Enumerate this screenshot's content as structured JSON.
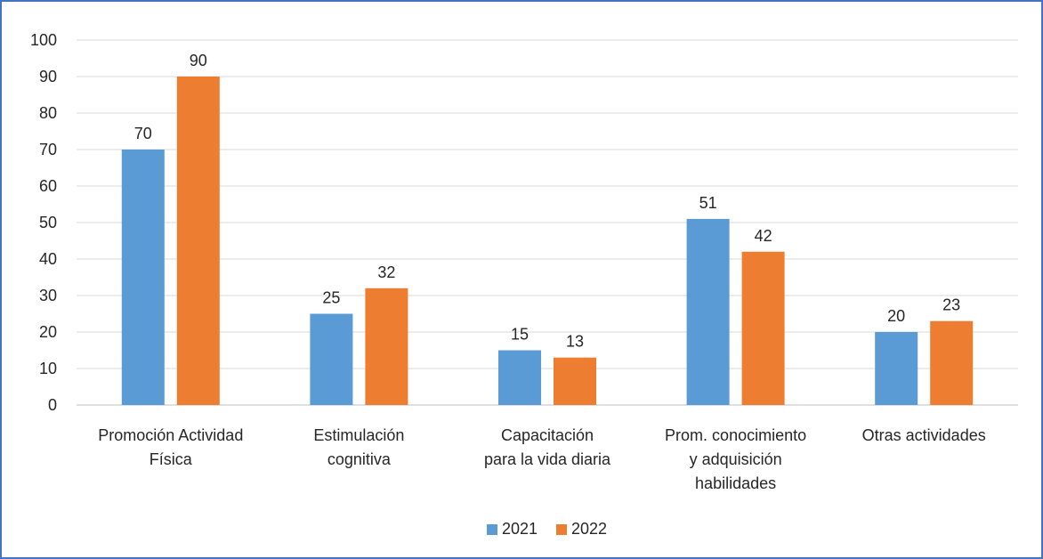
{
  "chart_data": {
    "type": "bar",
    "title": "",
    "xlabel": "",
    "ylabel": "",
    "ylim": [
      0,
      100
    ],
    "yticks": [
      0,
      10,
      20,
      30,
      40,
      50,
      60,
      70,
      80,
      90,
      100
    ],
    "grid": true,
    "legend_position": "bottom",
    "categories": [
      [
        "Promoción Actividad",
        "Física"
      ],
      [
        "Estimulación",
        "cognitiva"
      ],
      [
        "Capacitación",
        "para la vida diaria"
      ],
      [
        "Prom. conocimiento",
        "y adquisición",
        "habilidades"
      ],
      [
        "Otras actividades"
      ]
    ],
    "series": [
      {
        "name": "2021",
        "color": "#5b9bd5",
        "values": [
          70,
          25,
          15,
          51,
          20
        ]
      },
      {
        "name": "2022",
        "color": "#ed7d31",
        "values": [
          90,
          32,
          13,
          42,
          23
        ]
      }
    ]
  }
}
